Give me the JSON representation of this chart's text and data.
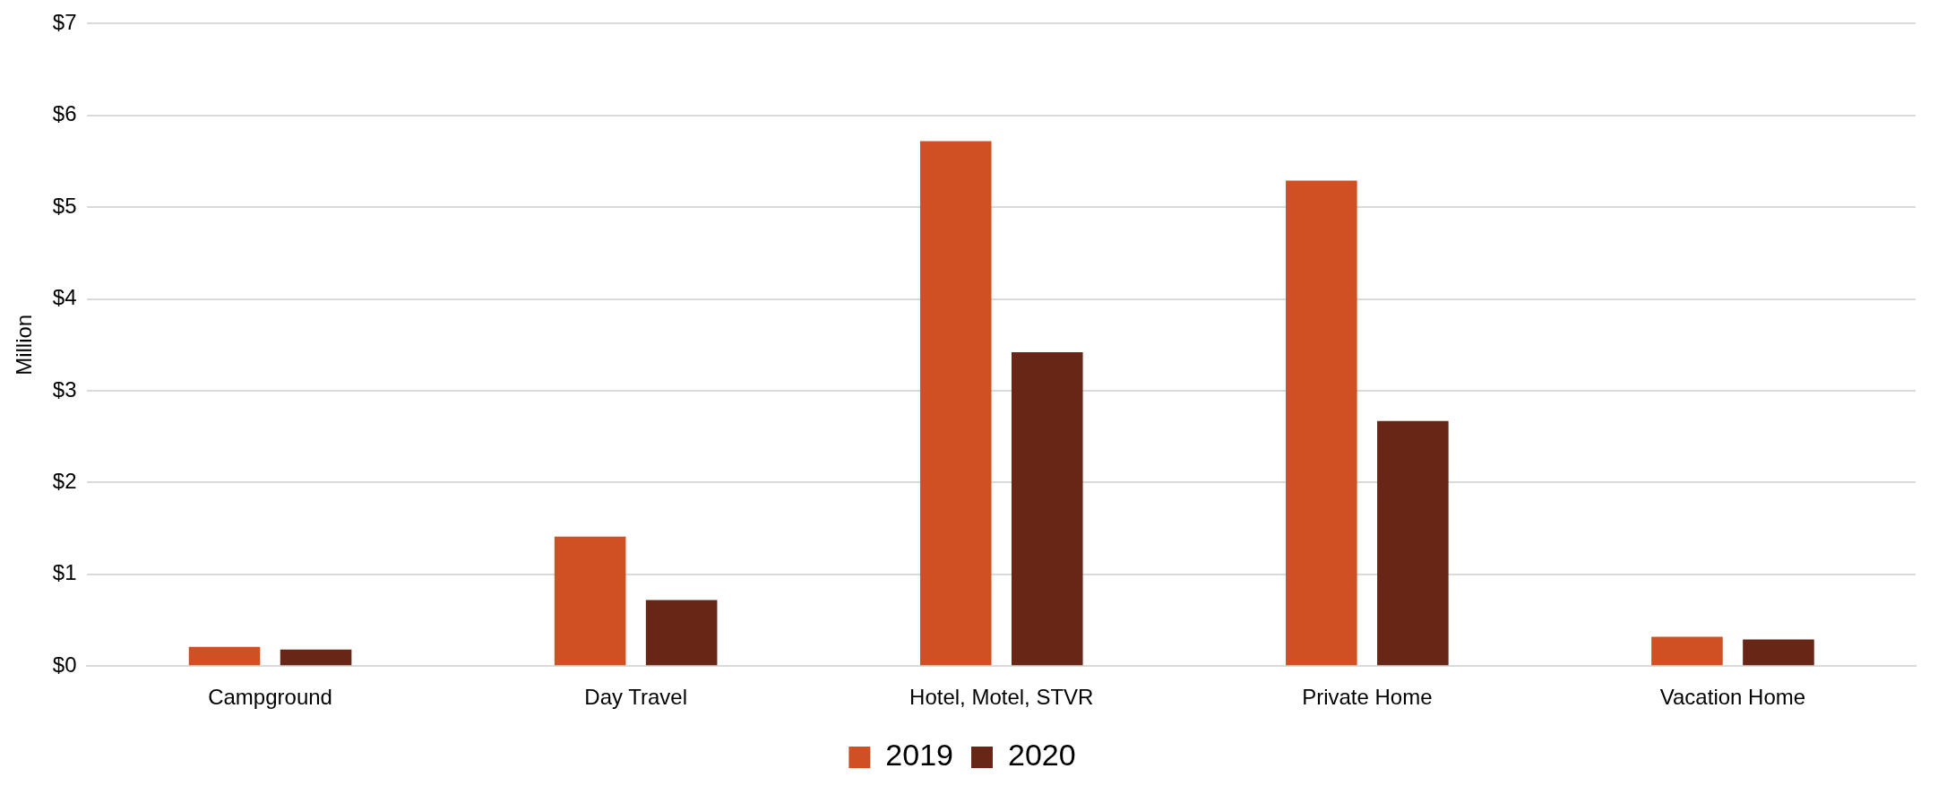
{
  "chart_data": {
    "type": "bar",
    "ylabel": "Million",
    "categories": [
      "Campground",
      "Day Travel",
      "Hotel, Motel, STVR",
      "Private Home",
      "Vacation Home"
    ],
    "series": [
      {
        "name": "2019",
        "color": "#d05024",
        "values": [
          0.21,
          1.41,
          5.72,
          5.29,
          0.32
        ]
      },
      {
        "name": "2020",
        "color": "#672616",
        "values": [
          0.18,
          0.72,
          3.42,
          2.67,
          0.29
        ]
      }
    ],
    "ylim": [
      0,
      7
    ],
    "yticks": [
      {
        "value": 0,
        "label": "$0"
      },
      {
        "value": 1,
        "label": "$1"
      },
      {
        "value": 2,
        "label": "$2"
      },
      {
        "value": 3,
        "label": "$3"
      },
      {
        "value": 4,
        "label": "$4"
      },
      {
        "value": 5,
        "label": "$5"
      },
      {
        "value": 6,
        "label": "$6"
      },
      {
        "value": 7,
        "label": "$7"
      }
    ],
    "grid": "y",
    "legend": "bottom"
  }
}
